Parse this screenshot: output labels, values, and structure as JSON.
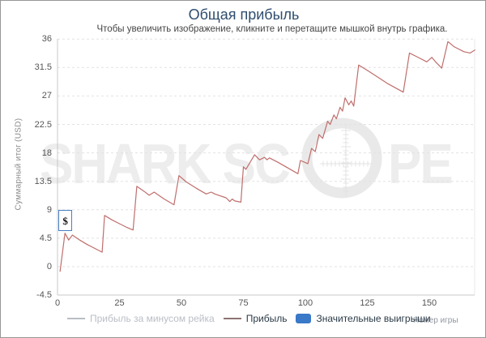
{
  "header": {
    "title": "Общая прибыль",
    "subtitle": "Чтобы увеличить изображение, кликните и перетащите мышкой внутрь графика."
  },
  "watermark": {
    "left_text": "SHARK SC",
    "right_text": "PE"
  },
  "chart_data": {
    "type": "line",
    "title": "Общая прибыль",
    "xlabel": "Номер игры",
    "ylabel": "Суммарный итог (USD)",
    "xlim": [
      0,
      168.5
    ],
    "ylim": [
      -4.5,
      36
    ],
    "x_ticks": [
      0,
      25,
      50,
      75,
      100,
      125,
      150
    ],
    "y_ticks": [
      36,
      31.5,
      27,
      22.5,
      18,
      13.5,
      9,
      4.5,
      0,
      -4.5
    ],
    "grid": "horizontal-dashed",
    "legend_position": "bottom",
    "series": [
      {
        "name": "Прибыль",
        "color": "#bf6e6c",
        "points": [
          [
            1,
            -0.8
          ],
          [
            3,
            5.3
          ],
          [
            4.5,
            4.2
          ],
          [
            6,
            5.0
          ],
          [
            9,
            4.2
          ],
          [
            12,
            3.5
          ],
          [
            15,
            2.9
          ],
          [
            18,
            2.3
          ],
          [
            19,
            8.1
          ],
          [
            22,
            7.4
          ],
          [
            25,
            6.8
          ],
          [
            28,
            6.2
          ],
          [
            30.5,
            5.8
          ],
          [
            32,
            12.7
          ],
          [
            35,
            11.9
          ],
          [
            37,
            11.3
          ],
          [
            39,
            11.8
          ],
          [
            43,
            10.7
          ],
          [
            47,
            9.8
          ],
          [
            49,
            14.4
          ],
          [
            52,
            13.4
          ],
          [
            56,
            12.4
          ],
          [
            60,
            11.5
          ],
          [
            62,
            11.8
          ],
          [
            63.5,
            11.5
          ],
          [
            65,
            11.3
          ],
          [
            68,
            10.9
          ],
          [
            69.5,
            10.3
          ],
          [
            70.5,
            10.7
          ],
          [
            71.5,
            10.4
          ],
          [
            74,
            10.2
          ],
          [
            75,
            15.8
          ],
          [
            76,
            15.4
          ],
          [
            79.5,
            17.7
          ],
          [
            81.5,
            16.9
          ],
          [
            83.5,
            17.3
          ],
          [
            84.5,
            16.9
          ],
          [
            85.5,
            17.2
          ],
          [
            89,
            16.5
          ],
          [
            93,
            15.6
          ],
          [
            97,
            14.7
          ],
          [
            98,
            16.8
          ],
          [
            101,
            16.3
          ],
          [
            102.5,
            18.7
          ],
          [
            104,
            18.2
          ],
          [
            105.5,
            20.9
          ],
          [
            107,
            20.3
          ],
          [
            109,
            23.0
          ],
          [
            110,
            22.5
          ],
          [
            111.5,
            24.0
          ],
          [
            112.5,
            23.4
          ],
          [
            114,
            25.2
          ],
          [
            115,
            24.6
          ],
          [
            116,
            26.7
          ],
          [
            117.5,
            25.6
          ],
          [
            118.5,
            26.2
          ],
          [
            119.5,
            25.4
          ],
          [
            121.5,
            31.9
          ],
          [
            124,
            31.3
          ],
          [
            128,
            30.3
          ],
          [
            133,
            29.0
          ],
          [
            139.5,
            27.6
          ],
          [
            142,
            33.8
          ],
          [
            145,
            33.2
          ],
          [
            149,
            32.4
          ],
          [
            151,
            33.1
          ],
          [
            152.5,
            32.4
          ],
          [
            155,
            31.4
          ],
          [
            157.5,
            35.6
          ],
          [
            160,
            34.8
          ],
          [
            164,
            34.0
          ],
          [
            166.5,
            33.8
          ],
          [
            168.5,
            34.3
          ]
        ]
      }
    ],
    "legend": [
      {
        "label": "Прибыль за минусом рейка",
        "swatch": "dash",
        "swatch_color": "#b9bec5",
        "text_color": "#b9bec5"
      },
      {
        "label": "Прибыль",
        "swatch": "dash",
        "swatch_color": "#8d7474",
        "text_color": "#2a3a47"
      },
      {
        "label": "Значительные выигрыши",
        "swatch": "square",
        "swatch_color": "#3a78c8",
        "text_color": "#2a3a47"
      }
    ],
    "markers": [
      {
        "label": "$",
        "x": 3,
        "y": 5.3
      }
    ]
  },
  "colors": {
    "grid": "#e2e2e2",
    "axis": "#c8c8c8",
    "watermark": "#ededed",
    "badge_border": "#4a7fc1"
  }
}
